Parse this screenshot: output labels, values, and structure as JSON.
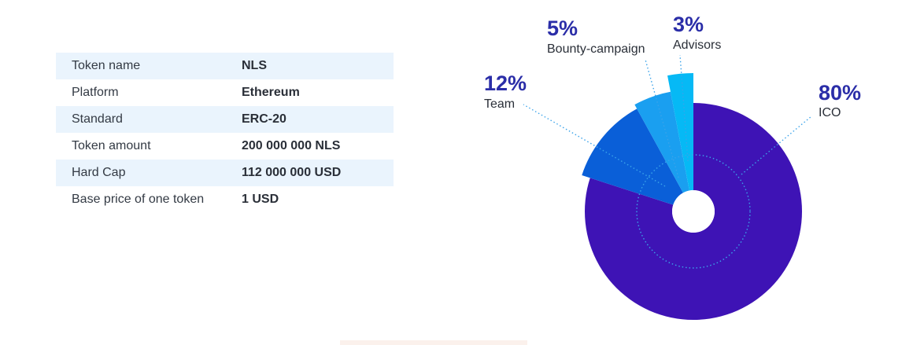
{
  "token_info": {
    "rows": [
      {
        "label": "Token name",
        "value": "NLS"
      },
      {
        "label": "Platform",
        "value": "Ethereum"
      },
      {
        "label": "Standard",
        "value": "ERC-20"
      },
      {
        "label": "Token amount",
        "value": "200 000 000 NLS"
      },
      {
        "label": "Hard Cap",
        "value": "112 000 000 USD"
      },
      {
        "label": "Base price of one token",
        "value": "1 USD"
      }
    ]
  },
  "chart_data": {
    "type": "pie",
    "title": "",
    "slices": [
      {
        "label": "ICO",
        "percent_label": "80%",
        "value": 80,
        "color": "#3e13b5"
      },
      {
        "label": "Team",
        "percent_label": "12%",
        "value": 12,
        "color": "#0a5fd8"
      },
      {
        "label": "Bounty-campaign",
        "percent_label": "5%",
        "value": 5,
        "color": "#1a9ff0"
      },
      {
        "label": "Advisors",
        "percent_label": "3%",
        "value": 3,
        "color": "#06b9f5"
      }
    ],
    "legend": "none",
    "leader_line_color": "#3aa3ea",
    "percent_label_color": "#2b2ea8"
  }
}
